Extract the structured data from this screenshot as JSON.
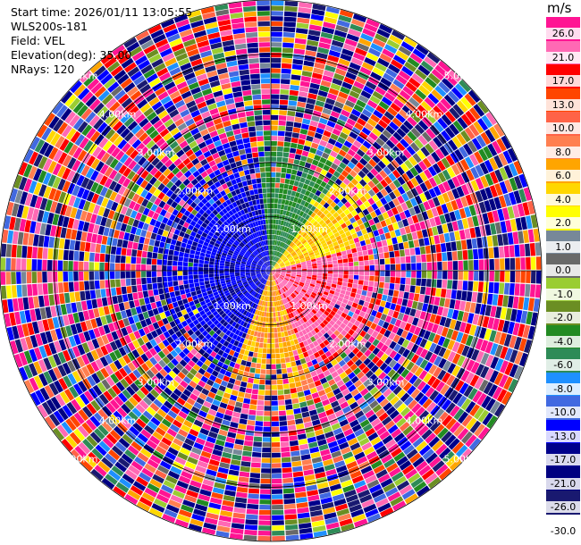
{
  "header": {
    "start_time": "Start time: 2026/01/11 13:05:55",
    "instrument": "WLS200s-181",
    "field": "Field: VEL",
    "elevation": "Elevation(deg): 35.00",
    "nrays": "NRays: 120"
  },
  "colorbar": {
    "unit": "m/s",
    "colors": [
      "#ff1493",
      "#ff69b4",
      "#ff0000",
      "#ff4500",
      "#ff6347",
      "#ff7f50",
      "#ffa500",
      "#ffd700",
      "#ffff00",
      "#778899",
      "#696969",
      "#9acd32",
      "#6b8e23",
      "#228b22",
      "#2e8b57",
      "#1e90ff",
      "#4169e1",
      "#0000ff",
      "#00008b",
      "#000080",
      "#191970"
    ],
    "tick_labels": [
      "26.0",
      "21.0",
      "17.0",
      "13.0",
      "10.0",
      "8.0",
      "6.0",
      "4.0",
      "2.0",
      "1.0",
      "0.0",
      "-1.0",
      "-2.0",
      "-4.0",
      "-6.0",
      "-8.0",
      "-10.0",
      "-13.0",
      "-17.0",
      "-21.0",
      "-26.0",
      "-30.0"
    ]
  },
  "chart_data": {
    "type": "heatmap",
    "projection": "polar-ppi",
    "field": "VEL",
    "units": "m/s",
    "nrays": 120,
    "elevation_deg": 35.0,
    "vmin": -30.0,
    "vmax": 30.0,
    "max_range_km": 5.0,
    "range_rings_km": [
      1.0,
      2.0,
      3.0,
      4.0,
      5.0
    ],
    "ring_labels": [
      "1.00km",
      "2.00km",
      "3.00km",
      "4.00km",
      "5.00km"
    ],
    "structure": {
      "near_range_km": 2.2,
      "near_sectors": [
        {
          "from_deg": 200,
          "to_deg": 355,
          "velocity": -16
        },
        {
          "from_deg": 355,
          "to_deg": 35,
          "velocity": -6
        },
        {
          "from_deg": 35,
          "to_deg": 75,
          "velocity": 3
        },
        {
          "from_deg": 75,
          "to_deg": 160,
          "velocity": 18
        },
        {
          "from_deg": 160,
          "to_deg": 200,
          "velocity": 5
        }
      ],
      "far_field": "noise"
    }
  }
}
